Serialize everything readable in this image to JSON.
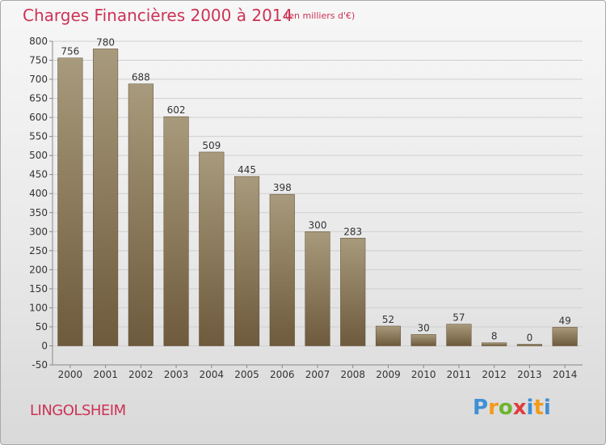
{
  "title": "Charges Financières 2000 à 2014",
  "subtitle": "(en milliers d'€)",
  "place": "LINGOLSHEIM",
  "logo": {
    "text": [
      "P",
      "r",
      "o",
      "x",
      "i",
      "t",
      "i"
    ],
    "colors": [
      "#3f8fd6",
      "#f39a1a",
      "#6cb52d",
      "#e03c3c",
      "#3f8fd6",
      "#f39a1a",
      "#6cb52d"
    ]
  },
  "colors": {
    "bar_top": "#a89a7c",
    "bar_bottom": "#6e5a3c",
    "text_accent": "#cc3355",
    "grid": "#cfcfcf"
  },
  "chart_data": {
    "type": "bar",
    "categories": [
      "2000",
      "2001",
      "2002",
      "2003",
      "2004",
      "2005",
      "2006",
      "2007",
      "2008",
      "2009",
      "2010",
      "2011",
      "2012",
      "2013",
      "2014"
    ],
    "values": [
      756,
      780,
      688,
      602,
      509,
      445,
      398,
      300,
      283,
      52,
      30,
      57,
      8,
      0,
      49
    ],
    "ylim": [
      -50,
      800
    ],
    "yticks": [
      -50,
      0,
      50,
      100,
      150,
      200,
      250,
      300,
      350,
      400,
      450,
      500,
      550,
      600,
      650,
      700,
      750,
      800
    ],
    "grid": true
  }
}
